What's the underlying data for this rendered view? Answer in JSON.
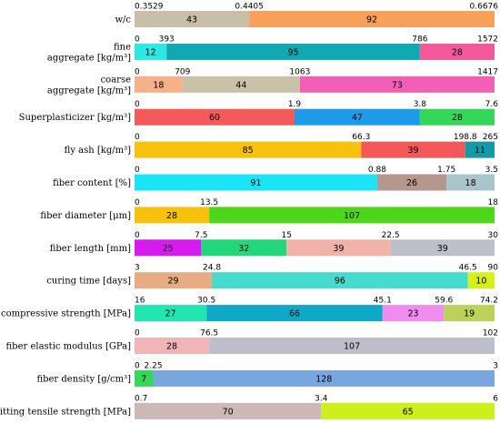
{
  "chart_data": {
    "type": "bar",
    "orientation": "horizontal-stacked-bins",
    "rows": [
      {
        "label": [
          "w/c"
        ],
        "ticks": [
          "0.3529",
          "0.4405",
          "0.6676"
        ],
        "bins": [
          {
            "count": 43,
            "color": "#c8bfa6"
          },
          {
            "count": 92,
            "color": "#f9a15a"
          }
        ]
      },
      {
        "label": [
          "fine",
          "aggregate [kg/m³]"
        ],
        "ticks": [
          "0",
          "393",
          "786",
          "1572"
        ],
        "bins": [
          {
            "count": 12,
            "color": "#2ee8e2"
          },
          {
            "count": 95,
            "color": "#0fa8b3"
          },
          {
            "count": 28,
            "color": "#f2589a"
          }
        ]
      },
      {
        "label": [
          "coarse",
          "aggregate [kg/m³]"
        ],
        "ticks": [
          "0",
          "709",
          "1063",
          "1417"
        ],
        "bins": [
          {
            "count": 18,
            "color": "#f7b08a"
          },
          {
            "count": 44,
            "color": "#c9c2a8"
          },
          {
            "count": 73,
            "color": "#f25fb6"
          }
        ]
      },
      {
        "label": [
          "Superplasticizer [kg/m³]"
        ],
        "ticks": [
          "0",
          "1.9",
          "3.8",
          "7.6"
        ],
        "bins": [
          {
            "count": 60,
            "color": "#f45a5a"
          },
          {
            "count": 47,
            "color": "#1e9be8"
          },
          {
            "count": 28,
            "color": "#35d65a"
          }
        ]
      },
      {
        "label": [
          "fly ash [kg/m³]"
        ],
        "ticks": [
          "0",
          "66.3",
          "198.8",
          "265"
        ],
        "bins": [
          {
            "count": 85,
            "color": "#f6c20e"
          },
          {
            "count": 39,
            "color": "#f25858"
          },
          {
            "count": 11,
            "color": "#139aa6"
          }
        ]
      },
      {
        "label": [
          "fiber content [%]"
        ],
        "ticks": [
          "0",
          "0.88",
          "1.75",
          "3.5"
        ],
        "bins": [
          {
            "count": 91,
            "color": "#1ae4f6"
          },
          {
            "count": 26,
            "color": "#b6978d"
          },
          {
            "count": 18,
            "color": "#a9c4cb"
          }
        ]
      },
      {
        "label": [
          "fiber diameter [μm]"
        ],
        "ticks": [
          "0",
          "13.5",
          "18"
        ],
        "bins": [
          {
            "count": 28,
            "color": "#f6c20e"
          },
          {
            "count": 107,
            "color": "#4ed61a"
          }
        ]
      },
      {
        "label": [
          "fiber length [mm]"
        ],
        "ticks": [
          "0",
          "7.5",
          "15",
          "22.5",
          "30"
        ],
        "bins": [
          {
            "count": 25,
            "color": "#d61af0"
          },
          {
            "count": 32,
            "color": "#22d67a"
          },
          {
            "count": 39,
            "color": "#f2b2aa"
          },
          {
            "count": 39,
            "color": "#bfbfcc"
          }
        ]
      },
      {
        "label": [
          "curing time [days]"
        ],
        "ticks": [
          "3",
          "24.8",
          "46.5",
          "90"
        ],
        "bins": [
          {
            "count": 29,
            "color": "#e8ac84"
          },
          {
            "count": 96,
            "color": "#46dbcc"
          },
          {
            "count": 10,
            "color": "#d6f01a"
          }
        ]
      },
      {
        "label": [
          "compressive strength [MPa]"
        ],
        "ticks": [
          "16",
          "30.5",
          "45.1",
          "59.6",
          "74.2"
        ],
        "bins": [
          {
            "count": 27,
            "color": "#22e6b2"
          },
          {
            "count": 66,
            "color": "#10a8c8"
          },
          {
            "count": 23,
            "color": "#f08cf0"
          },
          {
            "count": 19,
            "color": "#bcd15a"
          }
        ]
      },
      {
        "label": [
          "fiber elastic modulus [GPa]"
        ],
        "ticks": [
          "0",
          "76.5",
          "102"
        ],
        "bins": [
          {
            "count": 28,
            "color": "#f2b5b5"
          },
          {
            "count": 107,
            "color": "#bfbfcc"
          }
        ]
      },
      {
        "label": [
          "fiber density [g/cm³]"
        ],
        "ticks": [
          "0",
          "2.25",
          "3"
        ],
        "bins": [
          {
            "count": 7,
            "color": "#35d65a"
          },
          {
            "count": 128,
            "color": "#7aa6e0"
          }
        ]
      },
      {
        "label": [
          "splitting tensile strength [MPa]"
        ],
        "ticks": [
          "0.7",
          "3.4",
          "6"
        ],
        "bins": [
          {
            "count": 70,
            "color": "#cdb8b8"
          },
          {
            "count": 65,
            "color": "#cdf01a"
          }
        ]
      }
    ]
  }
}
